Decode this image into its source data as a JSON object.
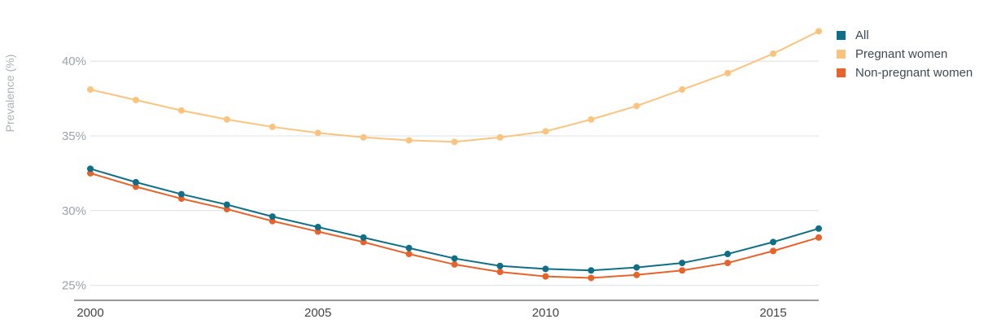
{
  "chart_data": {
    "type": "line",
    "title": "",
    "xlabel": "",
    "ylabel": "Prevalence (%)",
    "xlim": [
      2000,
      2016
    ],
    "ylim": [
      24,
      43
    ],
    "y_ticks": [
      25,
      30,
      35,
      40
    ],
    "y_tick_labels": [
      "25%",
      "30%",
      "35%",
      "40%"
    ],
    "x_ticks": [
      2000,
      2005,
      2010,
      2015
    ],
    "x_tick_labels": [
      "2000",
      "2005",
      "2010",
      "2015"
    ],
    "grid": "horizontal",
    "legend_position": "top-right",
    "x": [
      2000,
      2001,
      2002,
      2003,
      2004,
      2005,
      2006,
      2007,
      2008,
      2009,
      2010,
      2011,
      2012,
      2013,
      2014,
      2015,
      2016
    ],
    "series": [
      {
        "name": "All",
        "color": "#0e6f86",
        "values": [
          32.8,
          31.9,
          31.1,
          30.4,
          29.6,
          28.9,
          28.2,
          27.5,
          26.8,
          26.3,
          26.1,
          26.0,
          26.2,
          26.5,
          27.1,
          27.9,
          28.8
        ]
      },
      {
        "name": "Pregnant women",
        "color": "#fbc47e",
        "values": [
          38.1,
          37.4,
          36.7,
          36.1,
          35.6,
          35.2,
          34.9,
          34.7,
          34.6,
          34.9,
          35.3,
          36.1,
          37.0,
          38.1,
          39.2,
          40.5,
          42.0
        ]
      },
      {
        "name": "Non-pregnant women",
        "color": "#e8632b",
        "values": [
          32.5,
          31.6,
          30.8,
          30.1,
          29.3,
          28.6,
          27.9,
          27.1,
          26.4,
          25.9,
          25.6,
          25.5,
          25.7,
          26.0,
          26.5,
          27.3,
          28.2
        ]
      }
    ]
  }
}
